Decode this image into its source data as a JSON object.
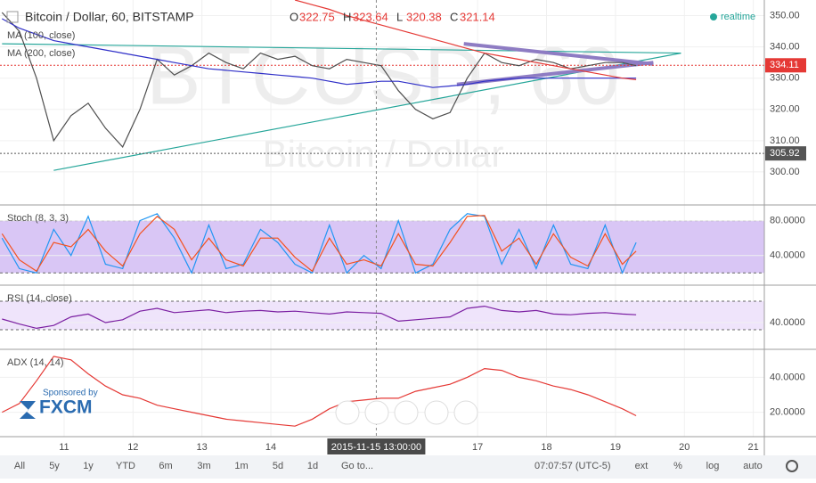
{
  "header": {
    "symbol_title": "Bitcoin / Dollar, 60, BITSTAMP",
    "ohlc": [
      {
        "label": "O",
        "value": 322.75
      },
      {
        "label": "H",
        "value": 323.64
      },
      {
        "label": "L",
        "value": 320.38
      },
      {
        "label": "C",
        "value": 321.14
      }
    ],
    "status": "realtime",
    "watermark": "BTCUSD, 60",
    "watermark_sub": "Bitcoin / Dollar"
  },
  "crosshair": {
    "date": "2015-11-15 13:00:00",
    "x": 15.53
  },
  "sponsor": {
    "text": "Sponsored by",
    "brand": "FXCM"
  },
  "toolbar": {
    "ranges": [
      "All",
      "5y",
      "1y",
      "YTD",
      "6m",
      "3m",
      "1m",
      "5d",
      "1d"
    ],
    "goto": "Go to...",
    "time": "07:07:57 (UTC-5)",
    "options": [
      "ext",
      "%",
      "log",
      "auto"
    ]
  },
  "chart_data": [
    {
      "type": "line",
      "ylim": [
        290,
        355
      ],
      "xlim": [
        10.07,
        21.16
      ],
      "yticks": [
        {
          "value": 300,
          "label": "300.00"
        },
        {
          "value": 310,
          "label": "310.00"
        },
        {
          "value": 320,
          "label": "320.00"
        },
        {
          "value": 330,
          "label": "330.00"
        },
        {
          "value": 340,
          "label": "340.00"
        },
        {
          "value": 350,
          "label": "350.00"
        }
      ],
      "x": [
        10.1,
        10.35,
        10.6,
        10.85,
        11.1,
        11.35,
        11.6,
        11.85,
        12.1,
        12.35,
        12.6,
        12.85,
        13.1,
        13.35,
        13.6,
        13.85,
        14.1,
        14.35,
        14.6,
        14.85,
        15.1,
        15.35,
        15.6,
        15.85,
        16.1,
        16.35,
        16.6,
        16.85,
        17.1,
        17.35,
        17.6,
        17.85,
        18.1,
        18.35,
        18.6,
        18.85,
        19.1,
        19.3
      ],
      "series": [
        {
          "name": "Bitcoin / Dollar, 60, BITSTAMP",
          "color": "#4e4e4e",
          "values": [
            351,
            345,
            330,
            310,
            318,
            322,
            314,
            308,
            320,
            336,
            331,
            334,
            338,
            335,
            333,
            338,
            336,
            337,
            334,
            333,
            336,
            335,
            334,
            326,
            320,
            317,
            319,
            330,
            338,
            335,
            334,
            336,
            335,
            333,
            334,
            335,
            335,
            334
          ]
        },
        {
          "name": "MA (100, close)",
          "color": "#2f2fc8",
          "values": [
            349,
            346,
            344,
            342,
            341,
            340,
            339,
            338,
            337,
            336,
            335,
            334,
            333,
            332.5,
            332,
            331.5,
            331,
            330.5,
            330,
            329,
            328,
            328.5,
            329,
            329,
            328,
            327,
            327.5,
            328,
            329,
            329.5,
            330,
            330,
            330,
            330,
            330,
            330,
            330,
            330
          ]
        },
        {
          "name": "MA (200, close)",
          "color": "#e53935",
          "values": [
            null,
            null,
            null,
            null,
            null,
            null,
            null,
            null,
            null,
            null,
            null,
            null,
            null,
            null,
            null,
            null,
            null,
            355,
            353.5,
            352,
            350,
            348.5,
            347,
            345.5,
            344,
            342.5,
            341,
            339.5,
            338,
            337,
            336,
            335,
            334,
            333,
            332,
            331,
            330,
            329.5
          ]
        }
      ],
      "trendlines": [
        {
          "color": "#26a69a",
          "x": [
            10.85,
            19.95
          ],
          "values": [
            300.5,
            338
          ]
        },
        {
          "color": "#26a69a",
          "x": [
            10.1,
            19.95
          ],
          "values": [
            341,
            338
          ]
        },
        {
          "color": "#8e7cc3",
          "x": [
            16.8,
            19.55
          ],
          "values": [
            341,
            334.5
          ]
        },
        {
          "color": "#8e7cc3",
          "x": [
            16.7,
            19.55
          ],
          "values": [
            328,
            335
          ]
        }
      ],
      "price_lines": [
        {
          "value": 334.11,
          "color": "#e53935"
        },
        {
          "value": 305.92,
          "color": "#555555"
        }
      ]
    },
    {
      "type": "line",
      "title": "Stoch (8, 3, 3)",
      "ylim": [
        8,
        96
      ],
      "band": [
        20,
        80
      ],
      "band_color": "#d9c6f5",
      "yticks": [
        {
          "value": 40,
          "label": "40.0000"
        },
        {
          "value": 80,
          "label": "80.0000"
        }
      ],
      "x": [
        10.1,
        10.35,
        10.6,
        10.85,
        11.1,
        11.35,
        11.6,
        11.85,
        12.1,
        12.35,
        12.6,
        12.85,
        13.1,
        13.35,
        13.6,
        13.85,
        14.1,
        14.35,
        14.6,
        14.85,
        15.1,
        15.35,
        15.6,
        15.85,
        16.1,
        16.35,
        16.6,
        16.85,
        17.1,
        17.35,
        17.6,
        17.85,
        18.1,
        18.35,
        18.6,
        18.85,
        19.1,
        19.3
      ],
      "series": [
        {
          "color": "#2196f3",
          "values": [
            60,
            25,
            20,
            70,
            40,
            85,
            30,
            25,
            80,
            88,
            60,
            20,
            75,
            25,
            30,
            70,
            55,
            30,
            20,
            75,
            20,
            40,
            25,
            80,
            20,
            30,
            70,
            88,
            85,
            30,
            70,
            25,
            75,
            30,
            25,
            75,
            20,
            55
          ]
        },
        {
          "color": "#f4511e",
          "values": [
            65,
            35,
            22,
            55,
            50,
            70,
            45,
            28,
            65,
            85,
            70,
            35,
            60,
            35,
            28,
            60,
            60,
            38,
            22,
            60,
            30,
            35,
            28,
            65,
            30,
            28,
            55,
            85,
            86,
            45,
            60,
            30,
            65,
            38,
            28,
            65,
            30,
            45
          ]
        }
      ]
    },
    {
      "type": "line",
      "title": "RSI (14, close)",
      "ylim": [
        5,
        90
      ],
      "band": [
        30,
        70
      ],
      "band_color": "#efe4fb",
      "yticks": [
        {
          "value": 40,
          "label": "40.0000"
        }
      ],
      "x": [
        10.1,
        10.35,
        10.6,
        10.85,
        11.1,
        11.35,
        11.6,
        11.85,
        12.1,
        12.35,
        12.6,
        12.85,
        13.1,
        13.35,
        13.6,
        13.85,
        14.1,
        14.35,
        14.6,
        14.85,
        15.1,
        15.35,
        15.6,
        15.85,
        16.1,
        16.35,
        16.6,
        16.85,
        17.1,
        17.35,
        17.6,
        17.85,
        18.1,
        18.35,
        18.6,
        18.85,
        19.1,
        19.3
      ],
      "series": [
        {
          "color": "#7b1fa2",
          "values": [
            45,
            38,
            32,
            36,
            48,
            52,
            40,
            44,
            56,
            60,
            54,
            56,
            58,
            54,
            56,
            57,
            55,
            56,
            54,
            52,
            55,
            54,
            53,
            42,
            44,
            46,
            48,
            60,
            63,
            57,
            55,
            57,
            52,
            51,
            53,
            54,
            52,
            51
          ]
        }
      ]
    },
    {
      "type": "line",
      "title": "ADX (14, 14)",
      "ylim": [
        6,
        55
      ],
      "yticks": [
        {
          "value": 20,
          "label": "20.0000"
        },
        {
          "value": 40,
          "label": "40.0000"
        }
      ],
      "xticks": [
        11,
        12,
        13,
        14,
        17,
        18,
        19,
        20,
        21
      ],
      "x": [
        10.1,
        10.35,
        10.6,
        10.85,
        11.1,
        11.35,
        11.6,
        11.85,
        12.1,
        12.35,
        12.6,
        12.85,
        13.1,
        13.35,
        13.6,
        13.85,
        14.1,
        14.35,
        14.6,
        14.85,
        15.1,
        15.35,
        15.6,
        15.85,
        16.1,
        16.35,
        16.6,
        16.85,
        17.1,
        17.35,
        17.6,
        17.85,
        18.1,
        18.35,
        18.6,
        18.85,
        19.1,
        19.3
      ],
      "series": [
        {
          "color": "#e53935",
          "values": [
            20,
            25,
            38,
            52,
            50,
            42,
            35,
            30,
            28,
            24,
            22,
            20,
            18,
            16,
            15,
            14,
            13,
            12,
            16,
            22,
            26,
            27,
            28,
            28,
            32,
            34,
            36,
            40,
            45,
            44,
            40,
            38,
            35,
            33,
            30,
            26,
            22,
            18
          ]
        }
      ]
    }
  ]
}
